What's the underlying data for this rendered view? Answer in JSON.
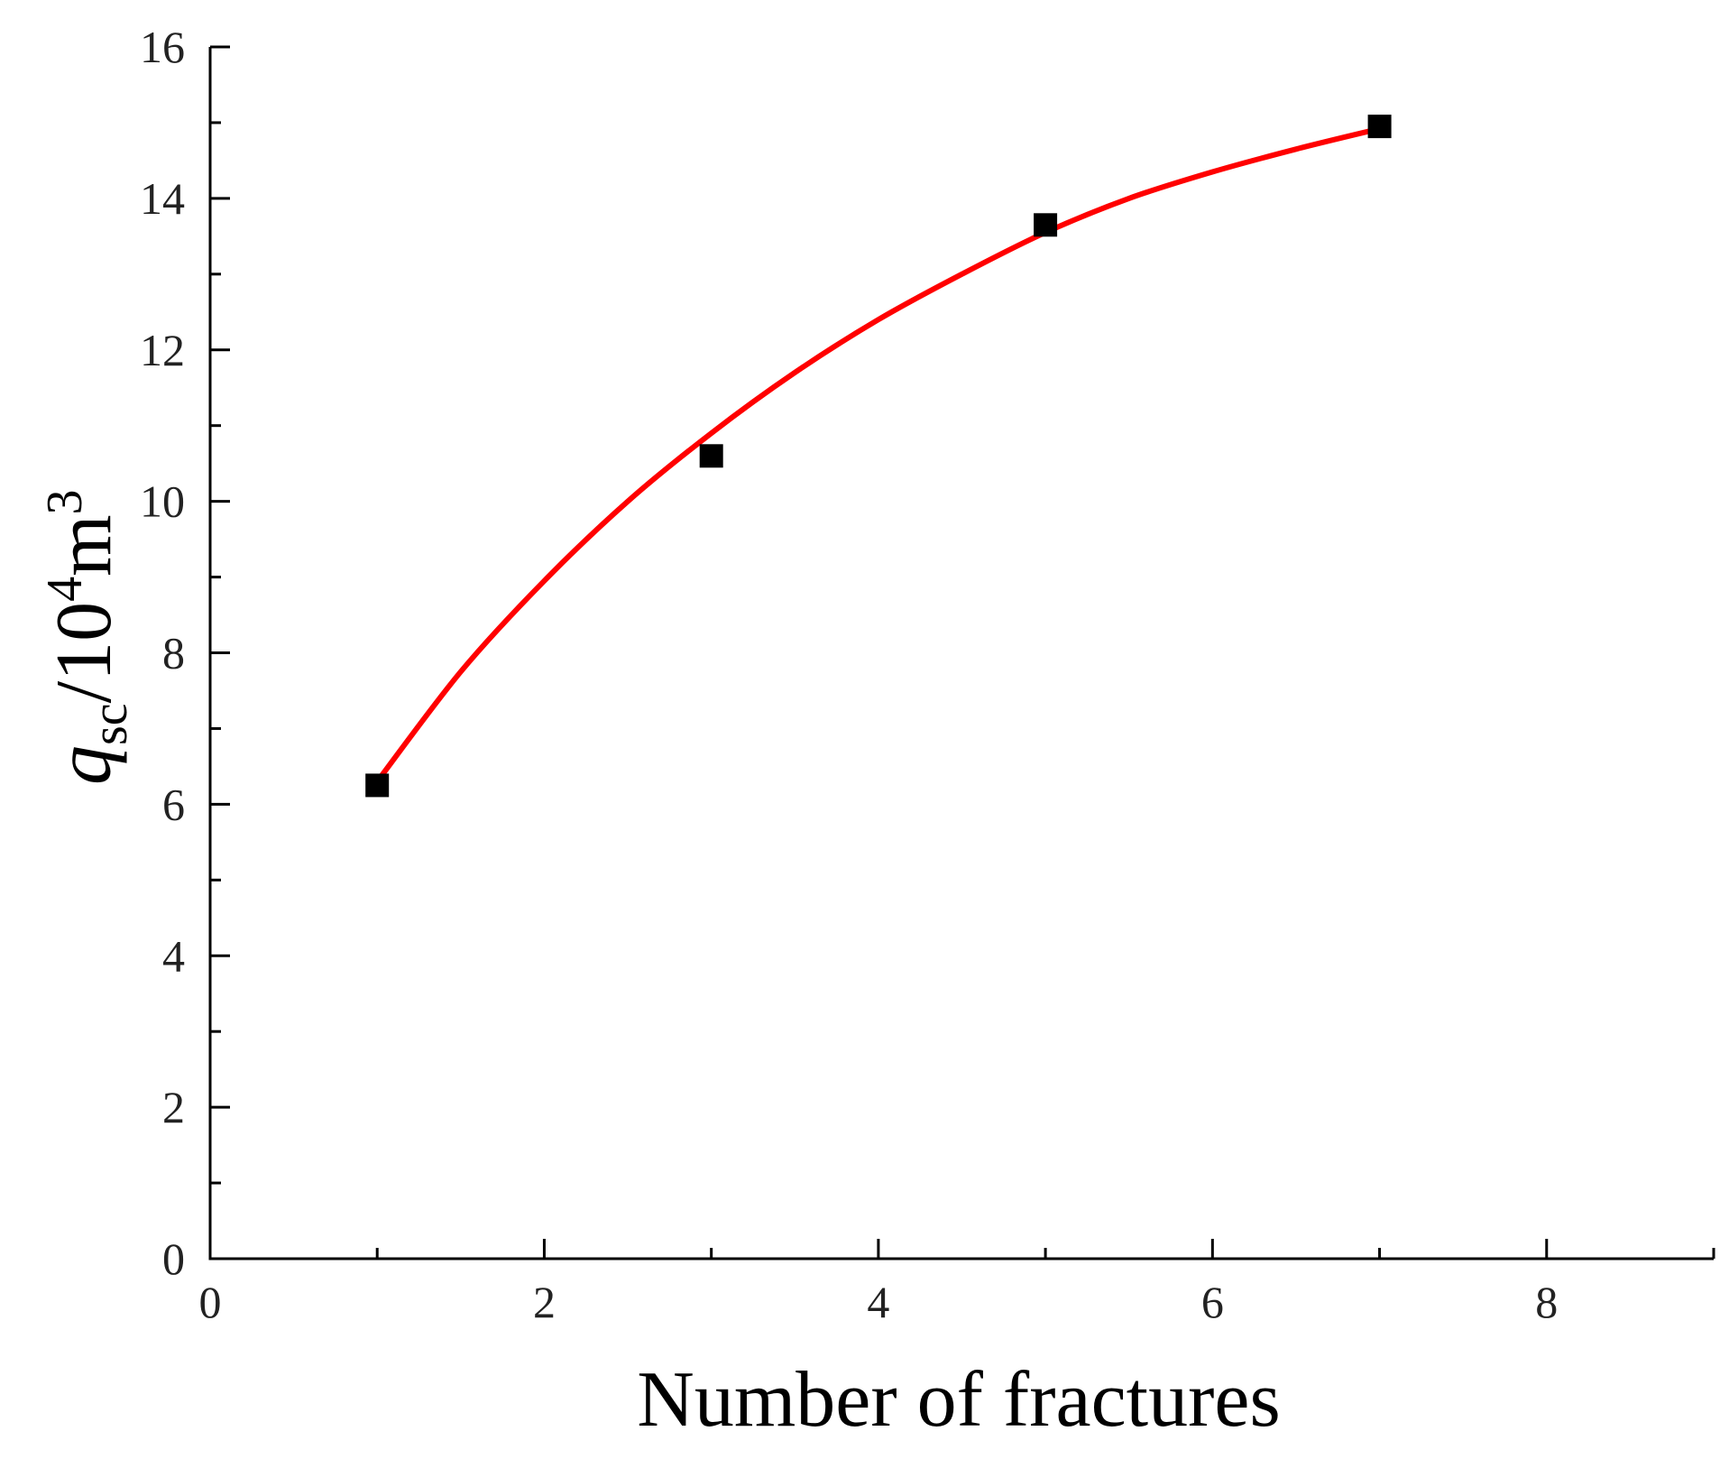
{
  "chart_data": {
    "type": "scatter",
    "title": "",
    "xlabel": "Number of fractures",
    "ylabel": {
      "q": "q",
      "sub": "sc",
      "slash": "/10",
      "exp4": "4",
      "unit": "m",
      "exp3": "3"
    },
    "xlim": [
      0,
      9
    ],
    "ylim": [
      0,
      16
    ],
    "x_ticks": [
      "0",
      "2",
      "4",
      "6",
      "8"
    ],
    "y_ticks": [
      "0",
      "2",
      "4",
      "6",
      "8",
      "10",
      "12",
      "14",
      "16"
    ],
    "series": [
      {
        "marker": "square",
        "color": "#000000",
        "x": [
          1,
          3,
          5,
          7
        ],
        "y": [
          6.25,
          10.6,
          13.65,
          14.95
        ]
      }
    ],
    "fit_curve": {
      "color": "#ff0000",
      "x": [
        1,
        1.5,
        2,
        2.5,
        3,
        3.5,
        4,
        4.5,
        5,
        5.5,
        6,
        6.5,
        7
      ],
      "y": [
        6.3,
        7.75,
        8.95,
        10.0,
        10.9,
        11.7,
        12.4,
        13.0,
        13.55,
        14.0,
        14.35,
        14.65,
        14.92
      ]
    },
    "grid": false,
    "legend": "none"
  }
}
